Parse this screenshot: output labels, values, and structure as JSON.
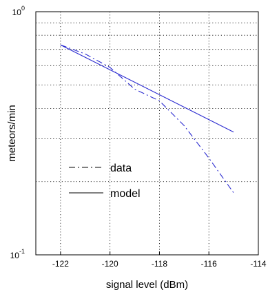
{
  "chart_data": {
    "type": "line",
    "title": "",
    "xlabel": "signal level (dBm)",
    "ylabel": "meteors/min",
    "xlim": [
      -123,
      -114
    ],
    "ylim": [
      0.1,
      1.0
    ],
    "yscale": "log",
    "grid": true,
    "grid_style": "dotted",
    "x_ticks": [
      -122,
      -120,
      -118,
      -116,
      -114
    ],
    "x_tick_labels": [
      "-122",
      "-120",
      "-118",
      "-116",
      "-114"
    ],
    "y_tick_labels": [
      {
        "value": 1.0,
        "base": "10",
        "exp": "0"
      },
      {
        "value": 0.1,
        "base": "10",
        "exp": "-1"
      }
    ],
    "legend": {
      "position": "center-left"
    },
    "series": [
      {
        "name": "data",
        "color": "#2a2ad0",
        "dash": "dashdot",
        "x": [
          -122,
          -121,
          -120,
          -119,
          -118,
          -117,
          -116,
          -115
        ],
        "y": [
          0.73,
          0.67,
          0.59,
          0.48,
          0.43,
          0.34,
          0.25,
          0.18
        ]
      },
      {
        "name": "model",
        "color": "#2a2ad0",
        "dash": "solid",
        "x": [
          -122,
          -115
        ],
        "y": [
          0.73,
          0.32
        ]
      }
    ]
  }
}
